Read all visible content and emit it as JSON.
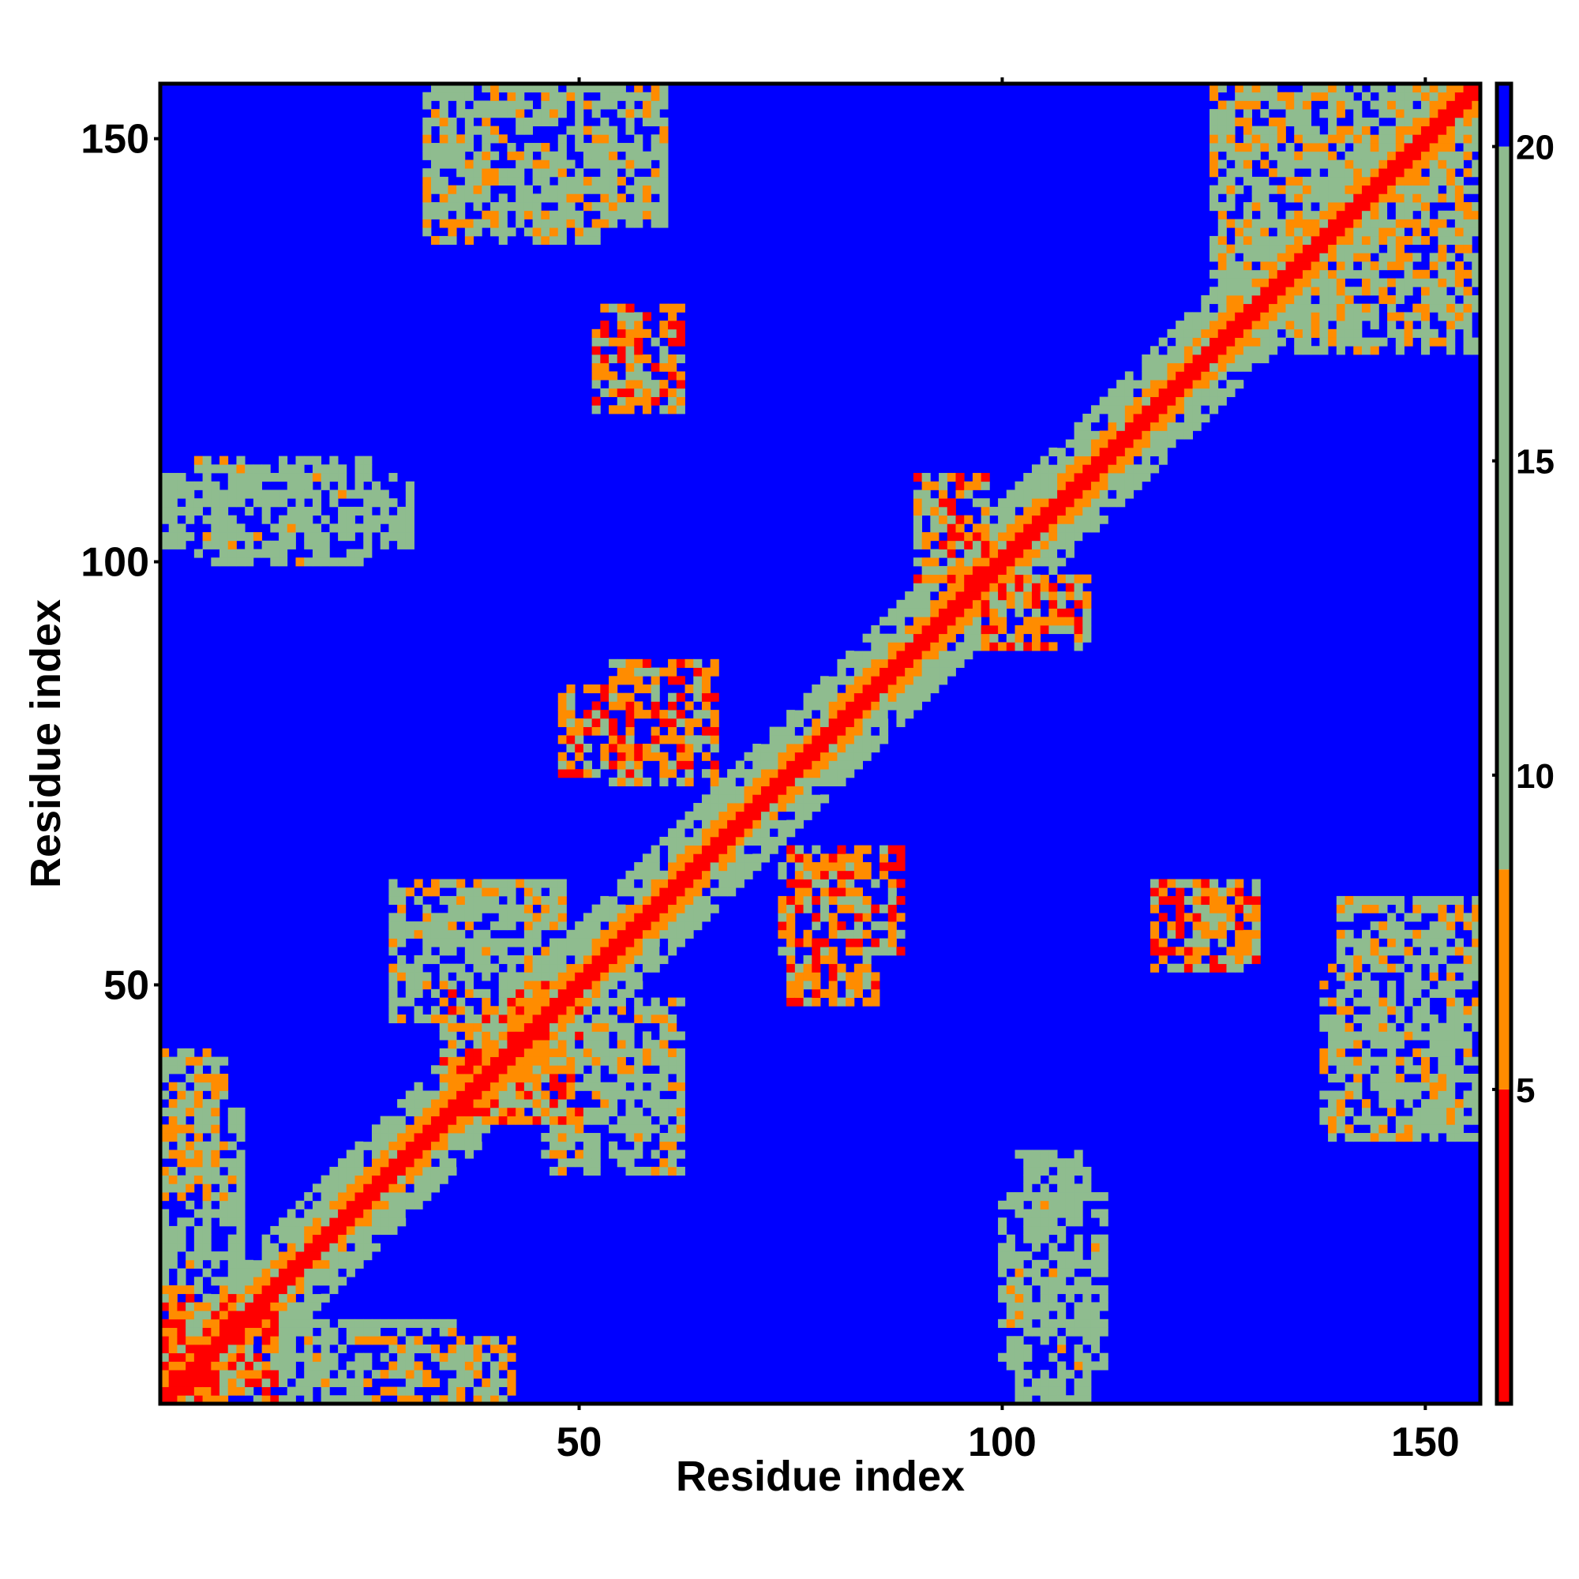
{
  "chart_data": {
    "type": "heatmap",
    "title": "",
    "xlabel": "Residue index",
    "ylabel": "Residue index",
    "n_residues": 156,
    "xlim": [
      1,
      156
    ],
    "ylim": [
      1,
      156
    ],
    "x_ticks": [
      50,
      100,
      150
    ],
    "y_ticks": [
      50,
      100,
      150
    ],
    "x_tick_labels": [
      "50",
      "100",
      "150"
    ],
    "y_tick_labels": [
      "50",
      "100",
      "150"
    ],
    "colorbar": {
      "range": [
        0,
        21
      ],
      "ticks": [
        5,
        10,
        15,
        20
      ],
      "tick_labels": [
        "5",
        "10",
        "15",
        "20"
      ],
      "bands": [
        {
          "from": 0,
          "to": 5,
          "color": "#ff0000"
        },
        {
          "from": 5,
          "to": 8.5,
          "color": "#ff8c00"
        },
        {
          "from": 8.5,
          "to": 20,
          "color": "#8fbc8f"
        },
        {
          "from": 20,
          "to": 21,
          "color": "#0000ff"
        }
      ]
    },
    "background_value": 21,
    "diagonal_value": 3.8,
    "contact_regions": [
      {
        "x": [
          1,
          14
        ],
        "y": [
          1,
          14
        ],
        "level": 6
      },
      {
        "x": [
          1,
          8
        ],
        "y": [
          25,
          42
        ],
        "level": 9
      },
      {
        "x": [
          1,
          35
        ],
        "y": [
          1,
          10
        ],
        "level": 12
      },
      {
        "x": [
          34,
          50
        ],
        "y": [
          34,
          50
        ],
        "level": 7
      },
      {
        "x": [
          46,
          62
        ],
        "y": [
          28,
          48
        ],
        "level": 11
      },
      {
        "x": [
          54,
          66
        ],
        "y": [
          74,
          88
        ],
        "level": 7
      },
      {
        "x": [
          75,
          85
        ],
        "y": [
          48,
          62
        ],
        "level": 7
      },
      {
        "x": [
          90,
          98
        ],
        "y": [
          100,
          110
        ],
        "level": 7
      },
      {
        "x": [
          98,
          108
        ],
        "y": [
          90,
          98
        ],
        "level": 7
      },
      {
        "x": [
          52,
          62
        ],
        "y": [
          118,
          130
        ],
        "level": 7
      },
      {
        "x": [
          34,
          60
        ],
        "y": [
          140,
          156
        ],
        "level": 11
      },
      {
        "x": [
          122,
          130
        ],
        "y": [
          53,
          61
        ],
        "level": 7
      },
      {
        "x": [
          125,
          156
        ],
        "y": [
          125,
          156
        ],
        "level": 10
      },
      {
        "x": [
          138,
          156
        ],
        "y": [
          32,
          52
        ],
        "level": 11
      },
      {
        "x": [
          100,
          112
        ],
        "y": [
          5,
          25
        ],
        "level": 12
      },
      {
        "x": [
          1,
          30
        ],
        "y": [
          102,
          110
        ],
        "level": 13
      }
    ]
  }
}
